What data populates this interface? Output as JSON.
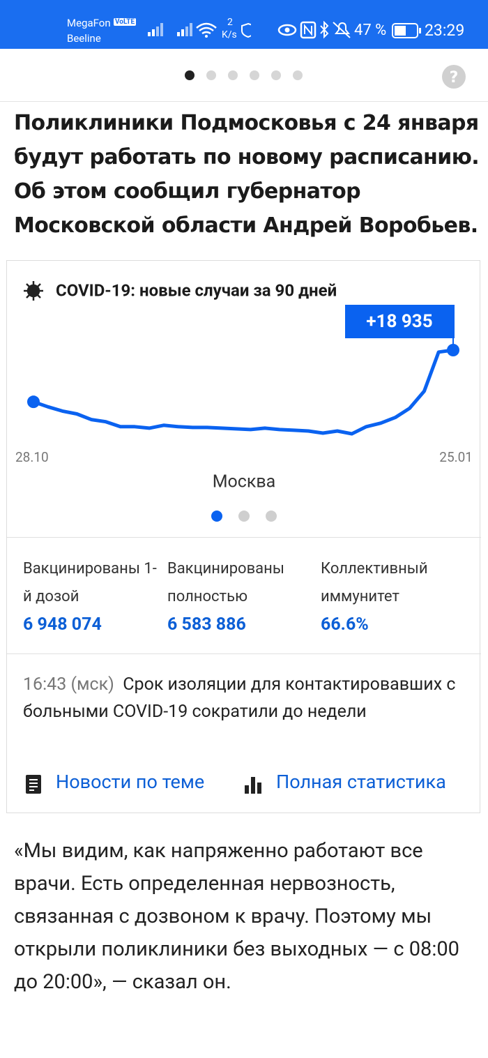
{
  "status_bar": {
    "carrier_1": "MegaFon",
    "volte": "VoLTE",
    "carrier_2": "Beeline",
    "speed_value": "2",
    "speed_unit": "K/s",
    "battery": "47 %",
    "time": "23:29"
  },
  "headline": "Поликлиники Подмосковья с 24 января будут работать по новому расписанию. Об этом сообщил губернатор Московской области Андрей Воробьев.",
  "widget": {
    "chart_data": {
      "type": "line",
      "title": "COVID-19: новые случаи за 90 дней",
      "categories": [
        "28.10",
        null,
        null,
        null,
        null,
        null,
        null,
        null,
        null,
        null,
        null,
        null,
        null,
        null,
        null,
        null,
        null,
        null,
        null,
        null,
        null,
        null,
        null,
        null,
        null,
        null,
        null,
        null,
        null,
        "25.01"
      ],
      "values": [
        8640,
        7650,
        6800,
        6230,
        5100,
        4670,
        3680,
        3680,
        3400,
        3970,
        3680,
        3540,
        3540,
        3400,
        3260,
        3120,
        3400,
        3120,
        2980,
        2830,
        2410,
        2830,
        2270,
        3680,
        4390,
        5520,
        7370,
        10760,
        18550,
        18935
      ],
      "value_labels": [
        null,
        null,
        null,
        null,
        null,
        null,
        null,
        null,
        null,
        null,
        null,
        null,
        null,
        null,
        null,
        null,
        null,
        null,
        null,
        null,
        null,
        null,
        null,
        null,
        null,
        null,
        null,
        null,
        null,
        "+18 935"
      ],
      "color": "#0a62f0",
      "subtitle": "Москва"
    },
    "stats": [
      {
        "label": "Вакцинированы 1-й дозой",
        "value": "6 948 074"
      },
      {
        "label": "Вакцинированы полностью",
        "value": "6 583 886"
      },
      {
        "label": "Коллективный иммунитет",
        "value": "66.6%"
      }
    ],
    "news": {
      "time": "16:43 (мск)",
      "text": "Срок изоляции для контактировавших с больными COVID-19 сократили до недели"
    },
    "links": [
      "Новости по теме",
      "Полная статистика"
    ]
  },
  "body": "«Мы видим, как напряженно работают все врачи. Есть определенная нервозность, связанная с дозвоном к врачу. Поэтому мы открыли поликлиники без выходных — с 08:00 до 20:00», — сказал он."
}
